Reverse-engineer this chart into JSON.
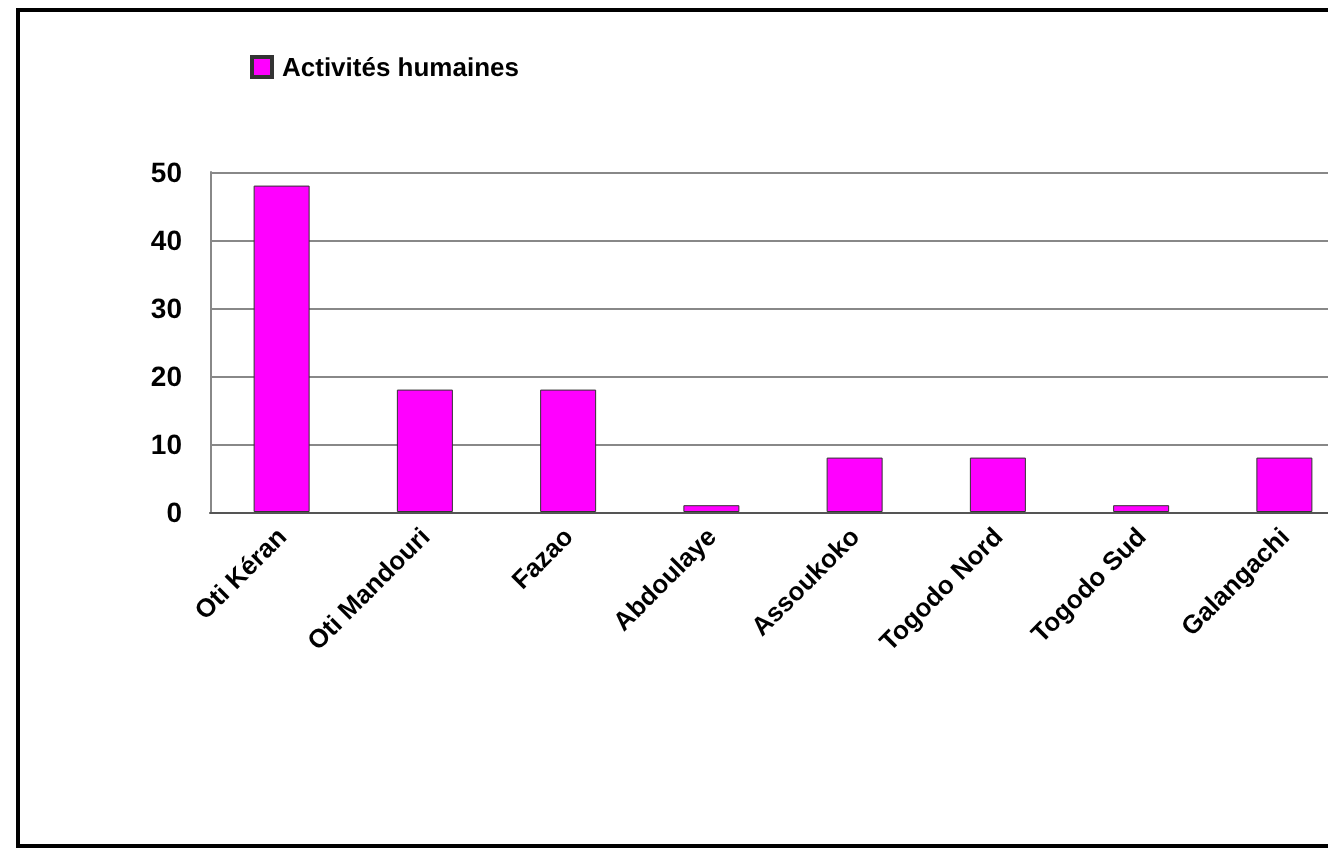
{
  "chart_data": {
    "type": "bar",
    "categories": [
      "Oti Kéran",
      "Oti Mandouri",
      "Fazao",
      "Abdoulaye",
      "Assoukoko",
      "Togodo Nord",
      "Togodo Sud",
      "Galangachi"
    ],
    "series": [
      {
        "name": "Activités humaines",
        "color": "#ff00ff",
        "values": [
          48,
          18,
          18,
          1,
          8,
          8,
          1,
          8
        ]
      }
    ],
    "ylim": [
      0,
      50
    ],
    "yticks": [
      0,
      10,
      20,
      30,
      40,
      50
    ],
    "grid": "y",
    "legend": "top left"
  }
}
